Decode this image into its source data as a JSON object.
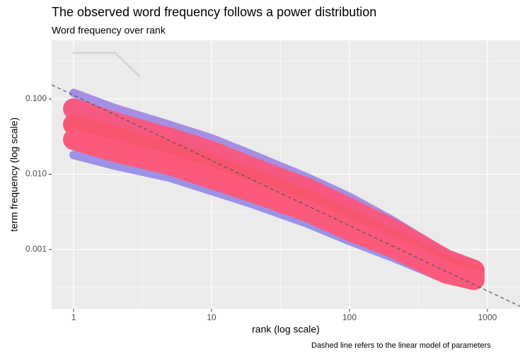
{
  "chart_data": {
    "type": "line",
    "title": "The observed word frequency follows a power distribution",
    "subtitle": "Word frequency over rank",
    "x_label": "rank (log scale)",
    "y_label": "term frequency (log scale)",
    "caption": "Dashed line refers to the linear model of parameters",
    "x_log": true,
    "y_log": true,
    "grid": true,
    "xlim": [
      0.693,
      1722
    ],
    "ylim": [
      0.000163,
      0.601
    ],
    "xticks": [
      1,
      10,
      100,
      1000
    ],
    "x_minor_ticks": [
      3.162,
      31.62,
      316.2
    ],
    "yticks": [
      {
        "value": 0.001,
        "label": "0.001"
      },
      {
        "value": 0.01,
        "label": "0.010"
      },
      {
        "value": 0.1,
        "label": "0.100"
      }
    ],
    "y_minor_ticks": [
      0.000316,
      0.00316,
      0.0316,
      0.316
    ],
    "x": [
      1,
      2,
      5,
      10,
      20,
      50,
      100,
      200,
      500,
      800
    ],
    "series": [
      {
        "color": "#9a7fe0",
        "values": [
          0.12,
          0.075,
          0.045,
          0.03,
          0.018,
          0.009,
          0.005,
          0.0025,
          0.0009,
          0.0006
        ]
      },
      {
        "color": "#8d83e8",
        "values": [
          0.018,
          0.013,
          0.009,
          0.006,
          0.004,
          0.0022,
          0.0013,
          0.0008,
          0.0004,
          0.00035
        ]
      },
      {
        "color": "#f65a82",
        "values": [
          0.074,
          0.048,
          0.03,
          0.02,
          0.012,
          0.0064,
          0.0035,
          0.0019,
          0.00073,
          0.00053
        ]
      },
      {
        "color": "#f8566f",
        "values": [
          0.046,
          0.031,
          0.02,
          0.013,
          0.0085,
          0.0045,
          0.0025,
          0.0014,
          0.0006,
          0.00046
        ]
      },
      {
        "color": "#fb5a7c",
        "values": [
          0.029,
          0.02,
          0.0134,
          0.0088,
          0.0058,
          0.0032,
          0.0018,
          0.0011,
          0.00049,
          0.0004
        ]
      }
    ],
    "outlier": {
      "color": "#b0b0b0",
      "x": [
        1,
        2,
        3
      ],
      "values": [
        0.41,
        0.41,
        0.2
      ]
    },
    "reference_line": {
      "intercept": 0.112,
      "slope": -0.866,
      "color": "#555555"
    }
  }
}
